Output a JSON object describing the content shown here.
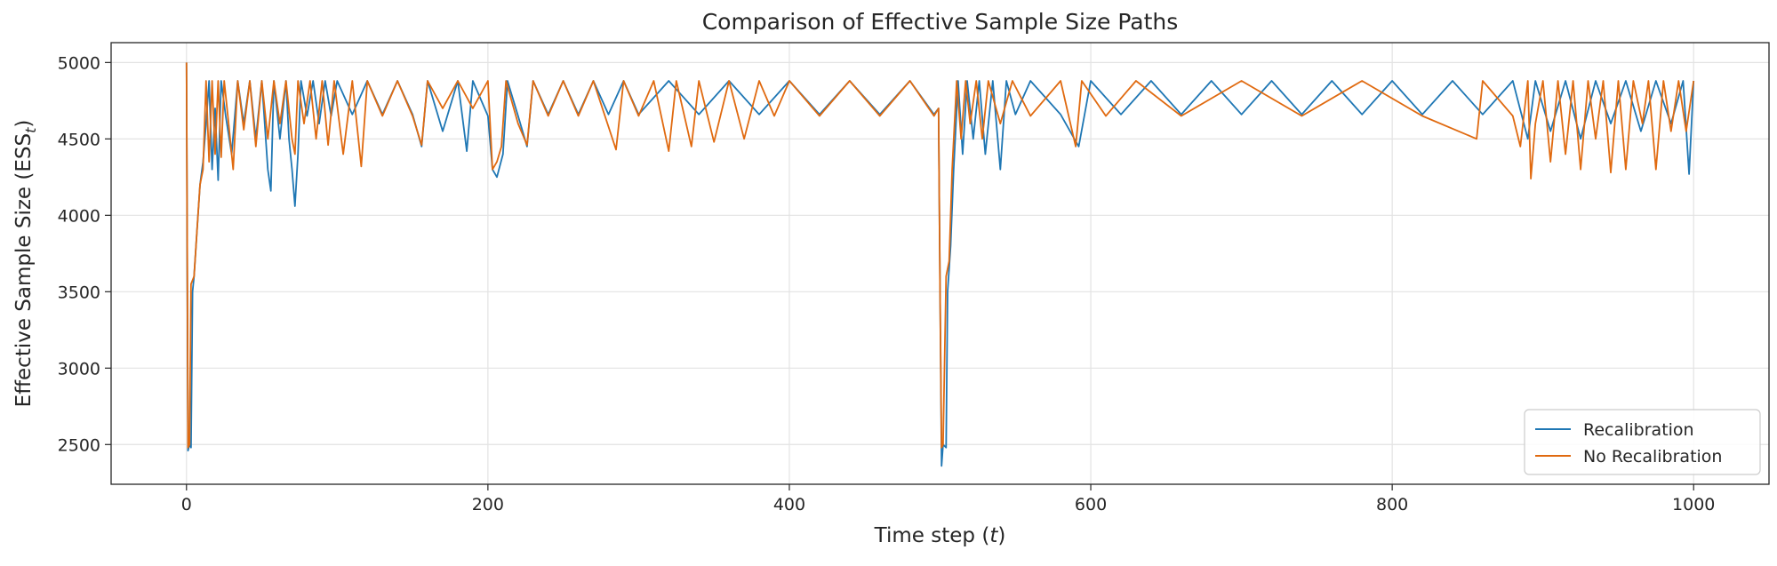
{
  "chart_data": {
    "type": "line",
    "title": "Comparison of Effective Sample Size Paths",
    "xlabel": "Time step (t)",
    "ylabel": "Effective Sample Size (ESS_t)",
    "xlim": [
      -50,
      1050
    ],
    "ylim": [
      2240,
      5130
    ],
    "x_ticks": [
      0,
      200,
      400,
      600,
      800,
      1000
    ],
    "y_ticks": [
      2500,
      3000,
      3500,
      4000,
      4500,
      5000
    ],
    "grid": true,
    "legend_position": "lower-right",
    "series": [
      {
        "name": "Recalibration",
        "color": "#1f77b4",
        "points": [
          [
            0,
            5000
          ],
          [
            1,
            2460
          ],
          [
            2,
            2500
          ],
          [
            3,
            2480
          ],
          [
            4,
            3500
          ],
          [
            5,
            3600
          ],
          [
            7,
            3900
          ],
          [
            9,
            4200
          ],
          [
            11,
            4350
          ],
          [
            13,
            4600
          ],
          [
            15,
            4880
          ],
          [
            17,
            4300
          ],
          [
            19,
            4700
          ],
          [
            21,
            4230
          ],
          [
            23,
            4880
          ],
          [
            26,
            4650
          ],
          [
            30,
            4400
          ],
          [
            34,
            4880
          ],
          [
            38,
            4600
          ],
          [
            42,
            4880
          ],
          [
            46,
            4500
          ],
          [
            50,
            4880
          ],
          [
            54,
            4300
          ],
          [
            56,
            4160
          ],
          [
            58,
            4880
          ],
          [
            62,
            4500
          ],
          [
            66,
            4880
          ],
          [
            68,
            4500
          ],
          [
            70,
            4300
          ],
          [
            72,
            4060
          ],
          [
            74,
            4400
          ],
          [
            76,
            4880
          ],
          [
            80,
            4650
          ],
          [
            84,
            4880
          ],
          [
            88,
            4600
          ],
          [
            92,
            4880
          ],
          [
            96,
            4650
          ],
          [
            100,
            4880
          ],
          [
            110,
            4660
          ],
          [
            120,
            4880
          ],
          [
            130,
            4660
          ],
          [
            140,
            4880
          ],
          [
            150,
            4660
          ],
          [
            156,
            4450
          ],
          [
            160,
            4880
          ],
          [
            170,
            4550
          ],
          [
            180,
            4880
          ],
          [
            186,
            4420
          ],
          [
            190,
            4880
          ],
          [
            200,
            4650
          ],
          [
            203,
            4300
          ],
          [
            206,
            4250
          ],
          [
            210,
            4400
          ],
          [
            213,
            4880
          ],
          [
            220,
            4650
          ],
          [
            226,
            4450
          ],
          [
            230,
            4880
          ],
          [
            240,
            4660
          ],
          [
            250,
            4880
          ],
          [
            260,
            4660
          ],
          [
            270,
            4880
          ],
          [
            280,
            4660
          ],
          [
            290,
            4880
          ],
          [
            300,
            4660
          ],
          [
            320,
            4880
          ],
          [
            340,
            4660
          ],
          [
            360,
            4880
          ],
          [
            380,
            4660
          ],
          [
            400,
            4880
          ],
          [
            420,
            4660
          ],
          [
            440,
            4880
          ],
          [
            460,
            4660
          ],
          [
            480,
            4880
          ],
          [
            496,
            4660
          ],
          [
            499,
            4700
          ],
          [
            500,
            3500
          ],
          [
            501,
            2360
          ],
          [
            502,
            2500
          ],
          [
            504,
            2480
          ],
          [
            505,
            3500
          ],
          [
            507,
            3800
          ],
          [
            509,
            4300
          ],
          [
            512,
            4880
          ],
          [
            515,
            4400
          ],
          [
            518,
            4880
          ],
          [
            522,
            4500
          ],
          [
            526,
            4880
          ],
          [
            530,
            4400
          ],
          [
            535,
            4880
          ],
          [
            540,
            4300
          ],
          [
            544,
            4880
          ],
          [
            550,
            4660
          ],
          [
            560,
            4880
          ],
          [
            580,
            4660
          ],
          [
            592,
            4450
          ],
          [
            600,
            4880
          ],
          [
            620,
            4660
          ],
          [
            640,
            4880
          ],
          [
            660,
            4660
          ],
          [
            680,
            4880
          ],
          [
            700,
            4660
          ],
          [
            720,
            4880
          ],
          [
            740,
            4660
          ],
          [
            760,
            4880
          ],
          [
            780,
            4660
          ],
          [
            800,
            4880
          ],
          [
            820,
            4660
          ],
          [
            840,
            4880
          ],
          [
            860,
            4660
          ],
          [
            880,
            4880
          ],
          [
            890,
            4500
          ],
          [
            895,
            4880
          ],
          [
            905,
            4550
          ],
          [
            915,
            4880
          ],
          [
            925,
            4500
          ],
          [
            935,
            4880
          ],
          [
            945,
            4600
          ],
          [
            955,
            4880
          ],
          [
            965,
            4550
          ],
          [
            975,
            4880
          ],
          [
            985,
            4600
          ],
          [
            993,
            4880
          ],
          [
            997,
            4270
          ],
          [
            1000,
            4880
          ]
        ]
      },
      {
        "name": "No Recalibration",
        "color": "#e06a10",
        "points": [
          [
            0,
            5000
          ],
          [
            1,
            2480
          ],
          [
            2,
            2500
          ],
          [
            3,
            3550
          ],
          [
            5,
            3600
          ],
          [
            7,
            3900
          ],
          [
            9,
            4200
          ],
          [
            11,
            4300
          ],
          [
            13,
            4880
          ],
          [
            15,
            4350
          ],
          [
            17,
            4880
          ],
          [
            19,
            4400
          ],
          [
            21,
            4880
          ],
          [
            23,
            4380
          ],
          [
            25,
            4880
          ],
          [
            28,
            4600
          ],
          [
            31,
            4300
          ],
          [
            34,
            4880
          ],
          [
            38,
            4560
          ],
          [
            42,
            4880
          ],
          [
            46,
            4450
          ],
          [
            50,
            4880
          ],
          [
            54,
            4500
          ],
          [
            58,
            4880
          ],
          [
            62,
            4600
          ],
          [
            66,
            4880
          ],
          [
            70,
            4500
          ],
          [
            72,
            4400
          ],
          [
            74,
            4880
          ],
          [
            78,
            4600
          ],
          [
            82,
            4880
          ],
          [
            86,
            4500
          ],
          [
            90,
            4880
          ],
          [
            94,
            4460
          ],
          [
            98,
            4880
          ],
          [
            104,
            4400
          ],
          [
            110,
            4880
          ],
          [
            116,
            4320
          ],
          [
            120,
            4880
          ],
          [
            130,
            4650
          ],
          [
            140,
            4880
          ],
          [
            150,
            4650
          ],
          [
            156,
            4460
          ],
          [
            160,
            4880
          ],
          [
            170,
            4700
          ],
          [
            180,
            4880
          ],
          [
            190,
            4700
          ],
          [
            200,
            4880
          ],
          [
            203,
            4300
          ],
          [
            206,
            4350
          ],
          [
            209,
            4450
          ],
          [
            212,
            4880
          ],
          [
            220,
            4600
          ],
          [
            226,
            4460
          ],
          [
            230,
            4880
          ],
          [
            240,
            4650
          ],
          [
            250,
            4880
          ],
          [
            260,
            4650
          ],
          [
            270,
            4880
          ],
          [
            285,
            4430
          ],
          [
            290,
            4880
          ],
          [
            300,
            4650
          ],
          [
            310,
            4880
          ],
          [
            320,
            4420
          ],
          [
            325,
            4880
          ],
          [
            335,
            4450
          ],
          [
            340,
            4880
          ],
          [
            350,
            4480
          ],
          [
            360,
            4880
          ],
          [
            370,
            4500
          ],
          [
            380,
            4880
          ],
          [
            390,
            4650
          ],
          [
            400,
            4880
          ],
          [
            420,
            4650
          ],
          [
            440,
            4880
          ],
          [
            460,
            4650
          ],
          [
            480,
            4880
          ],
          [
            496,
            4650
          ],
          [
            499,
            4700
          ],
          [
            500,
            3500
          ],
          [
            501,
            2480
          ],
          [
            502,
            2500
          ],
          [
            504,
            3600
          ],
          [
            506,
            3700
          ],
          [
            508,
            4300
          ],
          [
            511,
            4880
          ],
          [
            514,
            4500
          ],
          [
            517,
            4880
          ],
          [
            520,
            4600
          ],
          [
            524,
            4880
          ],
          [
            528,
            4500
          ],
          [
            532,
            4880
          ],
          [
            540,
            4600
          ],
          [
            548,
            4880
          ],
          [
            560,
            4650
          ],
          [
            580,
            4880
          ],
          [
            590,
            4450
          ],
          [
            594,
            4880
          ],
          [
            610,
            4650
          ],
          [
            630,
            4880
          ],
          [
            660,
            4650
          ],
          [
            700,
            4880
          ],
          [
            740,
            4650
          ],
          [
            780,
            4880
          ],
          [
            820,
            4650
          ],
          [
            856,
            4500
          ],
          [
            860,
            4880
          ],
          [
            880,
            4650
          ],
          [
            885,
            4450
          ],
          [
            890,
            4880
          ],
          [
            892,
            4240
          ],
          [
            895,
            4600
          ],
          [
            900,
            4880
          ],
          [
            905,
            4350
          ],
          [
            910,
            4880
          ],
          [
            915,
            4400
          ],
          [
            920,
            4880
          ],
          [
            925,
            4300
          ],
          [
            930,
            4880
          ],
          [
            935,
            4500
          ],
          [
            940,
            4880
          ],
          [
            945,
            4280
          ],
          [
            950,
            4880
          ],
          [
            955,
            4300
          ],
          [
            960,
            4880
          ],
          [
            966,
            4600
          ],
          [
            970,
            4880
          ],
          [
            975,
            4300
          ],
          [
            980,
            4880
          ],
          [
            985,
            4550
          ],
          [
            990,
            4880
          ],
          [
            995,
            4550
          ],
          [
            1000,
            4880
          ]
        ]
      }
    ]
  }
}
